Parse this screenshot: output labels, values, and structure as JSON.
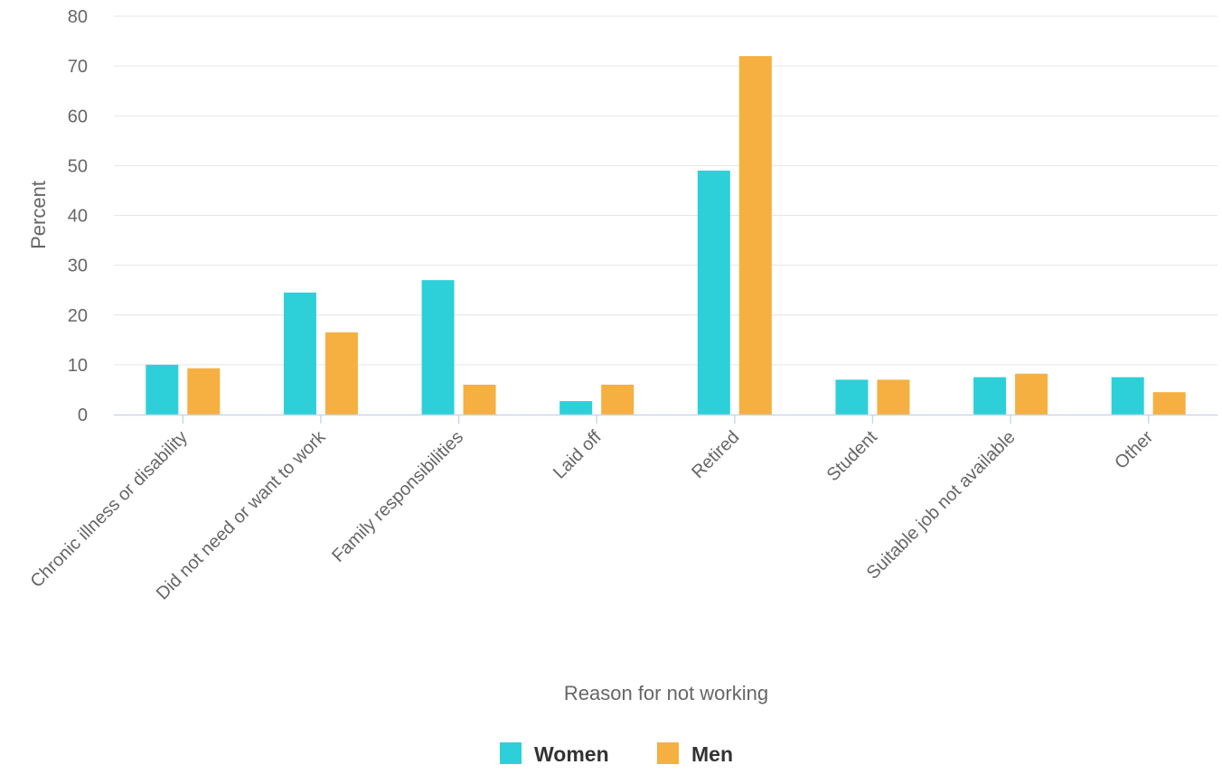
{
  "colors": {
    "women": "#2dd0d9",
    "men": "#f5b041",
    "grid": "#e6e6e6",
    "axis": "#ccd6eb"
  },
  "chart_data": {
    "type": "bar",
    "title": "",
    "xlabel": "Reason for not working",
    "ylabel": "Percent",
    "ylim": [
      0,
      80
    ],
    "yticks": [
      0,
      10,
      20,
      30,
      40,
      50,
      60,
      70,
      80
    ],
    "grid": true,
    "legend_position": "bottom-center",
    "categories": [
      "Chronic illness or disability",
      "Did not need or want to work",
      "Family responsibilities",
      "Laid off",
      "Retired",
      "Student",
      "Suitable job not available",
      "Other"
    ],
    "series": [
      {
        "name": "Women",
        "color": "#2dd0d9",
        "values": [
          10.0,
          24.5,
          27.0,
          2.7,
          49.0,
          7.0,
          7.5,
          7.5
        ]
      },
      {
        "name": "Men",
        "color": "#f5b041",
        "values": [
          9.3,
          16.5,
          6.0,
          6.0,
          72.0,
          7.0,
          8.2,
          4.5
        ]
      }
    ]
  }
}
